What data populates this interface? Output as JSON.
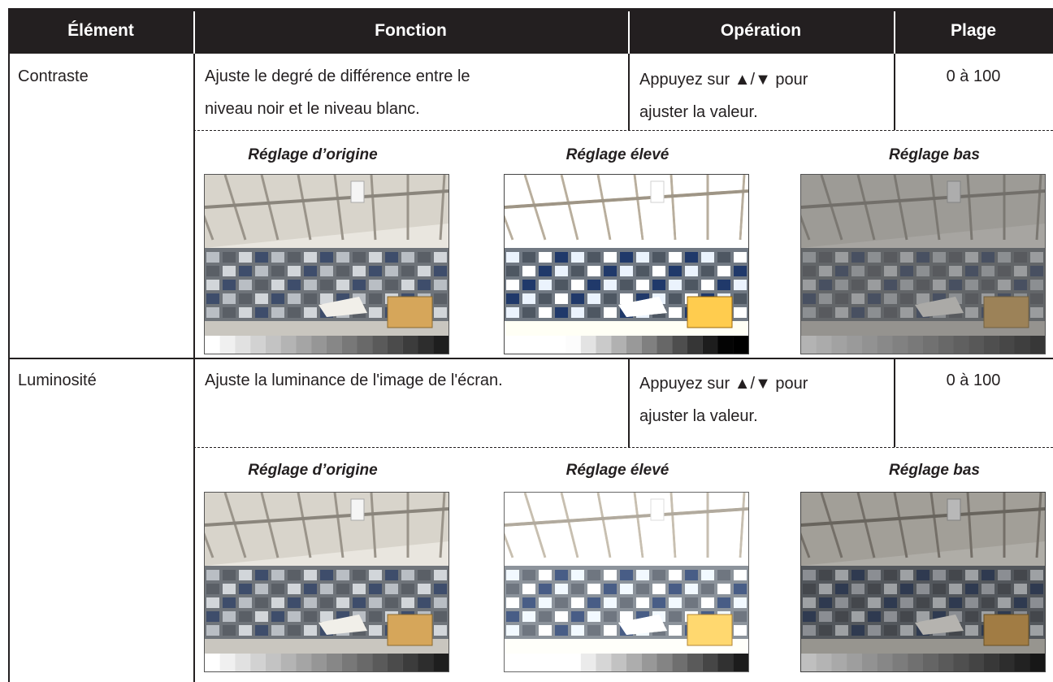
{
  "table": {
    "headers": [
      "Élément",
      "Fonction",
      "Opération",
      "Plage"
    ],
    "rows": [
      {
        "element": "Contraste",
        "function": [
          "Ajuste le degré de différence entre le",
          "niveau noir et le niveau blanc."
        ],
        "operation": [
          "Appuyez sur ▲/▼ pour",
          "ajuster la valeur."
        ],
        "range": "0 à 100",
        "captions": [
          "Réglage d’origine",
          "Réglage élevé",
          "Réglage bas"
        ]
      },
      {
        "element": "Luminosité",
        "function": [
          "Ajuste la luminance de l'image de l'écran."
        ],
        "operation": [
          "Appuyez sur ▲/▼ pour",
          "ajuster la valeur."
        ],
        "range": "0 à 100",
        "captions": [
          "Réglage d’origine",
          "Réglage élevé",
          "Réglage bas"
        ]
      }
    ]
  }
}
